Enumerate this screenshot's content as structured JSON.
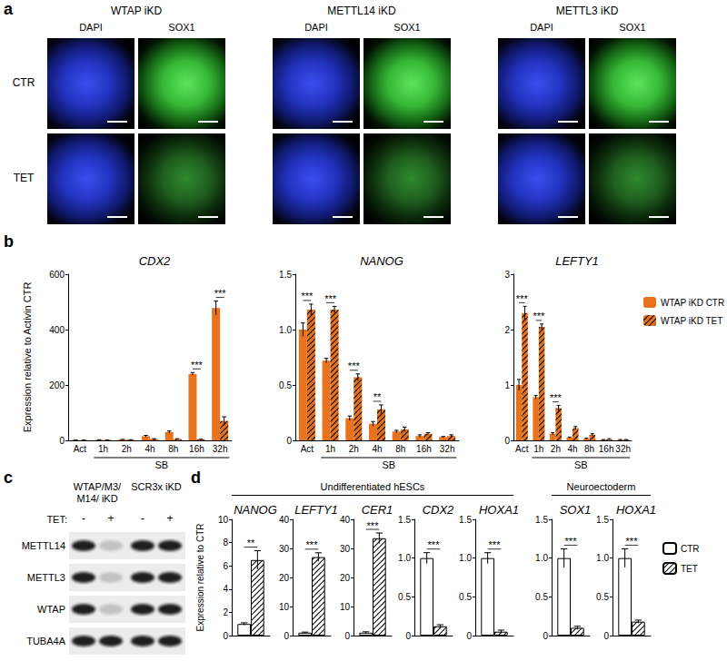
{
  "figure": {
    "a": {
      "label": "a",
      "groups": [
        "WTAP iKD",
        "METTL14 iKD",
        "METTL3 iKD"
      ],
      "channels": [
        "DAPI",
        "SOX1"
      ],
      "rows": [
        "CTR",
        "TET"
      ]
    },
    "c": {
      "label": "c",
      "column_groups": [
        "WTAP/M3/ M14/ iKD",
        "SCR3x iKD"
      ],
      "treatment_label": "TET:",
      "lanes": [
        "-",
        "+",
        "-",
        "+"
      ],
      "rows": [
        "METTL14",
        "METTL3",
        "WTAP",
        "TUBA4A"
      ]
    }
  },
  "chart_data": [
    {
      "panel": "b",
      "type": "bar",
      "title": "CDX2",
      "ylabel": "Expression relative to Activin CTR",
      "categories": [
        "Act",
        "1h",
        "2h",
        "4h",
        "8h",
        "16h",
        "32h"
      ],
      "series": [
        {
          "name": "WTAP iKD CTR",
          "color": "#e8731c",
          "values": [
            1,
            2,
            3,
            15,
            30,
            240,
            478
          ],
          "errors": [
            0.1,
            0.3,
            0.5,
            3,
            4,
            5,
            25
          ]
        },
        {
          "name": "WTAP iKD TET",
          "color": "#e8731c",
          "values": [
            1,
            1,
            2,
            5,
            5,
            3,
            70
          ],
          "errors": [
            0.1,
            0.2,
            0.3,
            1,
            1,
            1,
            15
          ]
        }
      ],
      "ylim": [
        0,
        600
      ],
      "yticks": [
        0,
        200,
        400,
        600
      ],
      "grid": false,
      "annotations": [
        {
          "category": "16h",
          "text": "***"
        },
        {
          "category": "32h",
          "text": "***"
        }
      ],
      "group_label": {
        "text": "SB",
        "from": "1h",
        "to": "32h"
      }
    },
    {
      "panel": "b",
      "type": "bar",
      "title": "NANOG",
      "categories": [
        "Act",
        "1h",
        "2h",
        "4h",
        "8h",
        "16h",
        "32h"
      ],
      "series": [
        {
          "name": "WTAP iKD CTR",
          "color": "#e8731c",
          "values": [
            1.0,
            0.72,
            0.2,
            0.15,
            0.08,
            0.04,
            0.03
          ],
          "errors": [
            0.06,
            0.02,
            0.02,
            0.02,
            0.01,
            0.01,
            0.005
          ]
        },
        {
          "name": "WTAP iKD TET",
          "color": "#e8731c",
          "values": [
            1.18,
            1.18,
            0.57,
            0.28,
            0.1,
            0.06,
            0.04
          ],
          "errors": [
            0.05,
            0.03,
            0.03,
            0.04,
            0.02,
            0.01,
            0.01
          ]
        }
      ],
      "ylim": [
        0,
        1.5
      ],
      "yticks": [
        0,
        0.5,
        {
          "value": 1,
          "label": "1.0"
        },
        1.5
      ],
      "grid": false,
      "annotations": [
        {
          "category": "Act",
          "text": "***"
        },
        {
          "category": "1h",
          "text": "***"
        },
        {
          "category": "2h",
          "text": "***"
        },
        {
          "category": "4h",
          "text": "**"
        }
      ],
      "group_label": {
        "text": "SB",
        "from": "1h",
        "to": "32h"
      }
    },
    {
      "panel": "b",
      "type": "bar",
      "title": "LEFTY1",
      "legend": "right",
      "categories": [
        "Act",
        "1h",
        "2h",
        "4h",
        "8h",
        "16h",
        "32h"
      ],
      "series": [
        {
          "name": "WTAP iKD CTR",
          "color": "#e8731c",
          "values": [
            1.0,
            0.78,
            0.12,
            0.05,
            0.03,
            0.01,
            0.01
          ],
          "errors": [
            0.1,
            0.03,
            0.02,
            0.01,
            0.01,
            0.005,
            0.005
          ]
        },
        {
          "name": "WTAP iKD TET",
          "color": "#e8731c",
          "values": [
            2.3,
            2.05,
            0.58,
            0.22,
            0.1,
            0.02,
            0.01
          ],
          "errors": [
            0.12,
            0.05,
            0.05,
            0.03,
            0.02,
            0.01,
            0.005
          ]
        }
      ],
      "ylim": [
        0,
        3
      ],
      "yticks": [
        0,
        1,
        2,
        3
      ],
      "grid": false,
      "annotations": [
        {
          "category": "Act",
          "text": "***"
        },
        {
          "category": "1h",
          "text": "***"
        },
        {
          "category": "2h",
          "text": "***"
        }
      ],
      "group_label": {
        "text": "SB",
        "from": "1h",
        "to": "32h"
      }
    },
    {
      "panel": "d",
      "group": "Undifferentiated hESCs",
      "type": "bar",
      "title": "NANOG",
      "ylabel": "Expression relative to CTR",
      "categories": [
        null
      ],
      "series": [
        {
          "name": "CTR",
          "color": "#ffffff",
          "values": [
            1.0
          ],
          "errors": [
            0.1
          ]
        },
        {
          "name": "TET",
          "color": "#ffffff",
          "values": [
            6.5
          ],
          "errors": [
            0.8
          ]
        }
      ],
      "ylim": [
        0,
        10
      ],
      "yticks": [
        0,
        2,
        4,
        6,
        8,
        10
      ],
      "grid": false,
      "annotations": [
        {
          "category": null,
          "text": "**"
        }
      ]
    },
    {
      "panel": "d",
      "group": "Undifferentiated hESCs",
      "type": "bar",
      "title": "LEFTY1",
      "categories": [
        null
      ],
      "series": [
        {
          "name": "CTR",
          "color": "#ffffff",
          "values": [
            1.0
          ],
          "errors": [
            0.2
          ]
        },
        {
          "name": "TET",
          "color": "#ffffff",
          "values": [
            27
          ],
          "errors": [
            1.5
          ]
        }
      ],
      "ylim": [
        0,
        40
      ],
      "yticks": [
        0,
        10,
        20,
        30,
        40
      ],
      "grid": false,
      "annotations": [
        {
          "category": null,
          "text": "***"
        }
      ]
    },
    {
      "panel": "d",
      "group": "Undifferentiated hESCs",
      "type": "bar",
      "title": "CER1",
      "categories": [
        null
      ],
      "series": [
        {
          "name": "CTR",
          "color": "#ffffff",
          "values": [
            1.0
          ],
          "errors": [
            0.3
          ]
        },
        {
          "name": "TET",
          "color": "#ffffff",
          "values": [
            33.5
          ],
          "errors": [
            1.8
          ]
        }
      ],
      "ylim": [
        0,
        40
      ],
      "yticks": [
        0,
        10,
        20,
        30,
        40
      ],
      "grid": false,
      "annotations": [
        {
          "category": null,
          "text": "***"
        }
      ]
    },
    {
      "panel": "d",
      "group": "Undifferentiated hESCs",
      "type": "bar",
      "title": "CDX2",
      "categories": [
        null
      ],
      "series": [
        {
          "name": "CTR",
          "color": "#ffffff",
          "values": [
            1.0
          ],
          "errors": [
            0.07
          ]
        },
        {
          "name": "TET",
          "color": "#ffffff",
          "values": [
            0.12
          ],
          "errors": [
            0.02
          ]
        }
      ],
      "ylim": [
        0,
        1.5
      ],
      "yticks": [
        0,
        0.5,
        {
          "value": 1,
          "label": "1.0"
        },
        1.5
      ],
      "grid": false,
      "annotations": [
        {
          "category": null,
          "text": "***"
        }
      ]
    },
    {
      "panel": "d",
      "group": "Undifferentiated hESCs",
      "type": "bar",
      "title": "HOXA1",
      "categories": [
        null
      ],
      "series": [
        {
          "name": "CTR",
          "color": "#ffffff",
          "values": [
            1.0
          ],
          "errors": [
            0.07
          ]
        },
        {
          "name": "TET",
          "color": "#ffffff",
          "values": [
            0.05
          ],
          "errors": [
            0.02
          ]
        }
      ],
      "ylim": [
        0,
        1.5
      ],
      "yticks": [
        0,
        0.5,
        {
          "value": 1,
          "label": "1.0"
        },
        1.5
      ],
      "grid": false,
      "annotations": [
        {
          "category": null,
          "text": "***"
        }
      ]
    },
    {
      "panel": "d",
      "group": "Neuroectoderm",
      "type": "bar",
      "title": "SOX1",
      "categories": [
        null
      ],
      "series": [
        {
          "name": "CTR",
          "color": "#ffffff",
          "values": [
            1.0
          ],
          "errors": [
            0.12
          ]
        },
        {
          "name": "TET",
          "color": "#ffffff",
          "values": [
            0.1
          ],
          "errors": [
            0.02
          ]
        }
      ],
      "ylim": [
        0,
        1.5
      ],
      "yticks": [
        0,
        0.5,
        {
          "value": 1,
          "label": "1.0"
        },
        1.5
      ],
      "grid": false,
      "annotations": [
        {
          "category": null,
          "text": "***"
        }
      ]
    },
    {
      "panel": "d",
      "group": "Neuroectoderm",
      "type": "bar",
      "title": "HOXA1",
      "legend": "right",
      "categories": [
        null
      ],
      "series": [
        {
          "name": "CTR",
          "color": "#ffffff",
          "values": [
            1.0
          ],
          "errors": [
            0.12
          ]
        },
        {
          "name": "TET",
          "color": "#ffffff",
          "values": [
            0.18
          ],
          "errors": [
            0.02
          ]
        }
      ],
      "ylim": [
        0,
        1.5
      ],
      "yticks": [
        0,
        0.5,
        {
          "value": 1,
          "label": "1.0"
        },
        1.5
      ],
      "grid": false,
      "annotations": [
        {
          "category": null,
          "text": "***"
        }
      ]
    }
  ]
}
